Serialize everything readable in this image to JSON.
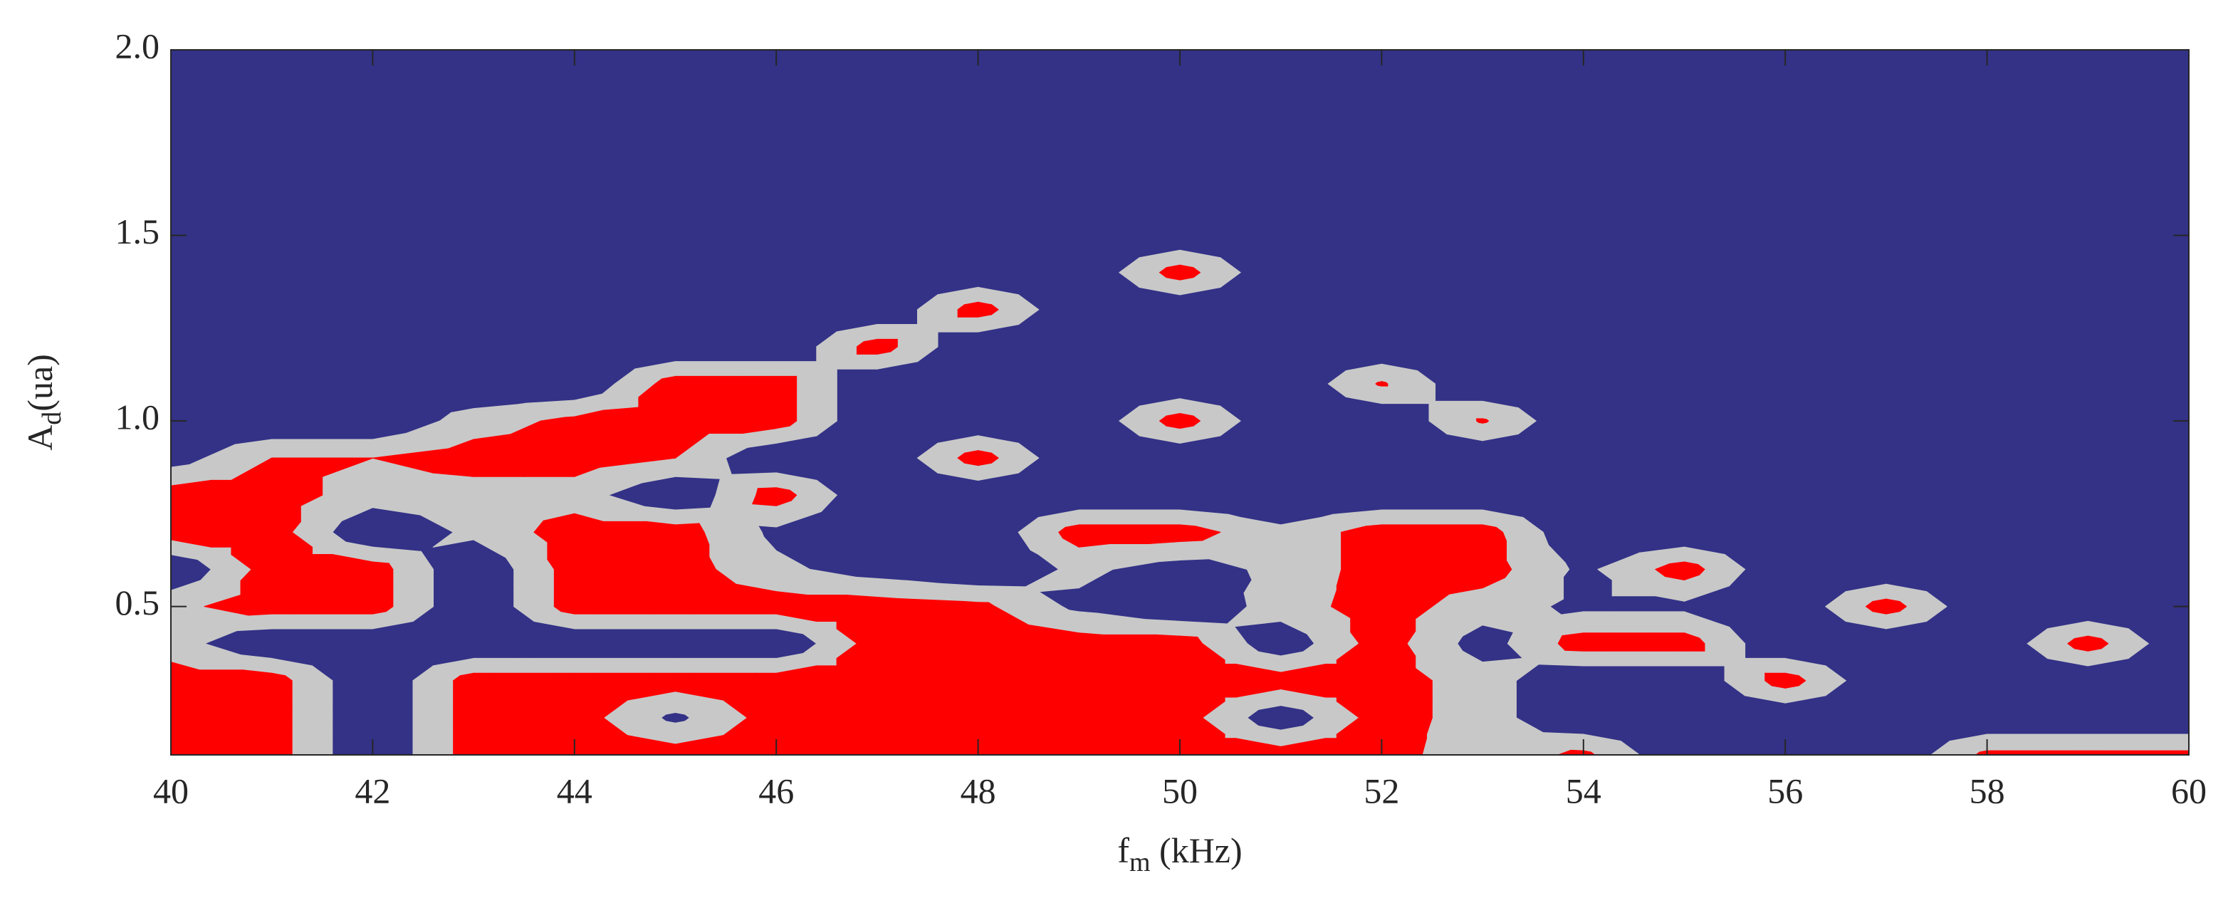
{
  "chart_data": {
    "type": "contourf",
    "xlabel": {
      "main": "f",
      "sub": "m",
      "rest": " (kHz)"
    },
    "ylabel": {
      "main": "A",
      "sub": "d",
      "rest": "(ua)"
    },
    "x": [
      40,
      41,
      42,
      43,
      44,
      45,
      46,
      47,
      48,
      49,
      50,
      51,
      52,
      53,
      54,
      55,
      56,
      57,
      58,
      59,
      60
    ],
    "y": [
      0.1,
      0.2,
      0.3,
      0.4,
      0.5,
      0.6,
      0.7,
      0.8,
      0.9,
      1.0,
      1.1,
      1.2,
      1.3,
      1.4,
      1.5,
      1.6,
      1.7,
      1.8,
      1.9,
      2.0
    ],
    "z": [
      [
        1,
        1,
        0,
        1,
        1,
        1,
        1,
        1,
        1,
        1,
        1,
        1,
        1,
        0.5,
        0.9,
        0,
        0,
        0,
        0.9,
        0.9,
        0.9
      ],
      [
        1,
        1,
        0,
        1,
        1,
        0.3,
        1,
        1,
        1,
        1,
        1,
        0.1,
        1,
        0.6,
        0,
        0,
        0,
        0,
        0,
        0,
        0
      ],
      [
        1,
        1,
        0,
        1,
        1,
        1,
        1,
        1,
        1,
        1,
        1,
        1,
        1,
        0.6,
        0,
        0,
        1,
        0,
        0,
        0,
        0
      ],
      [
        0.6,
        0,
        0,
        0,
        0,
        0,
        0,
        1,
        1,
        1,
        1,
        0.1,
        1,
        0.2,
        1,
        1,
        0,
        0,
        0,
        1,
        0
      ],
      [
        0.7,
        1,
        1,
        0,
        1,
        1,
        1,
        1,
        0.9,
        0.3,
        0,
        0.6,
        1,
        0.6,
        0.3,
        0.3,
        0,
        1,
        0,
        0,
        0
      ],
      [
        0,
        1,
        1,
        0,
        1,
        1,
        0.5,
        0.2,
        0,
        0.5,
        0.2,
        0.5,
        1,
        1,
        0.3,
        1,
        0,
        0,
        0,
        0,
        0
      ],
      [
        1,
        1,
        0,
        0.5,
        1,
        1,
        0.3,
        0,
        0,
        1,
        1,
        0.5,
        1,
        1,
        0,
        0,
        0,
        0,
        0,
        0,
        0
      ],
      [
        1,
        1,
        0.6,
        0.6,
        0.6,
        0,
        1,
        0,
        0,
        0,
        0,
        0,
        0,
        0,
        0,
        0,
        0,
        0,
        0,
        0,
        0
      ],
      [
        0.2,
        0.8,
        0.8,
        1,
        1,
        0.8,
        0,
        0,
        1,
        0,
        0,
        0,
        0,
        0,
        0,
        0,
        0,
        0,
        0,
        0,
        0
      ],
      [
        0,
        0,
        0,
        0.6,
        0.9,
        1,
        1,
        0,
        0,
        0,
        1,
        0,
        0,
        0.85,
        0,
        0,
        0,
        0,
        0,
        0,
        0
      ],
      [
        0,
        0,
        0,
        0,
        0,
        1,
        1,
        0,
        0,
        0,
        0,
        0,
        0.85,
        0,
        0,
        0,
        0,
        0,
        0,
        0,
        0
      ],
      [
        0,
        0,
        0,
        0,
        0,
        0,
        0,
        1,
        0,
        0,
        0,
        0,
        0,
        0,
        0,
        0,
        0,
        0,
        0,
        0,
        0
      ],
      [
        0,
        0,
        0,
        0,
        0,
        0,
        0,
        0,
        1,
        0,
        0,
        0,
        0,
        0,
        0,
        0,
        0,
        0,
        0,
        0,
        0
      ],
      [
        0,
        0,
        0,
        0,
        0,
        0,
        0,
        0,
        0,
        0,
        1,
        0,
        0,
        0,
        0,
        0,
        0,
        0,
        0,
        0,
        0
      ],
      [
        0,
        0,
        0,
        0,
        0,
        0,
        0,
        0,
        0,
        0,
        0,
        0,
        0,
        0,
        0,
        0,
        0,
        0,
        0,
        0,
        0
      ],
      [
        0,
        0,
        0,
        0,
        0,
        0,
        0,
        0,
        0,
        0,
        0,
        0,
        0,
        0,
        0,
        0,
        0,
        0,
        0,
        0,
        0
      ],
      [
        0,
        0,
        0,
        0,
        0,
        0,
        0,
        0,
        0,
        0,
        0,
        0,
        0,
        0,
        0,
        0,
        0,
        0,
        0,
        0,
        0
      ],
      [
        0,
        0,
        0,
        0,
        0,
        0,
        0,
        0,
        0,
        0,
        0,
        0,
        0,
        0,
        0,
        0,
        0,
        0,
        0,
        0,
        0
      ],
      [
        0,
        0,
        0,
        0,
        0,
        0,
        0,
        0,
        0,
        0,
        0,
        0,
        0,
        0,
        0,
        0,
        0,
        0,
        0,
        0,
        0
      ],
      [
        0,
        0,
        0,
        0,
        0,
        0,
        0,
        0,
        0,
        0,
        0,
        0,
        0,
        0,
        0,
        0,
        0,
        0,
        0,
        0,
        0
      ]
    ],
    "levels": [
      0.4,
      0.8
    ],
    "colors": [
      "#333287",
      "#c8c8c8",
      "#ff0000"
    ],
    "xlim": [
      40,
      60
    ],
    "ylim": [
      0.1,
      2.0
    ],
    "xticks": [
      40,
      42,
      44,
      46,
      48,
      50,
      52,
      54,
      56,
      58,
      60
    ],
    "yticks": [
      0.5,
      {
        "value": 1.0,
        "label": "1.0"
      },
      1.5,
      {
        "value": 2.0,
        "label": "2.0"
      }
    ]
  }
}
